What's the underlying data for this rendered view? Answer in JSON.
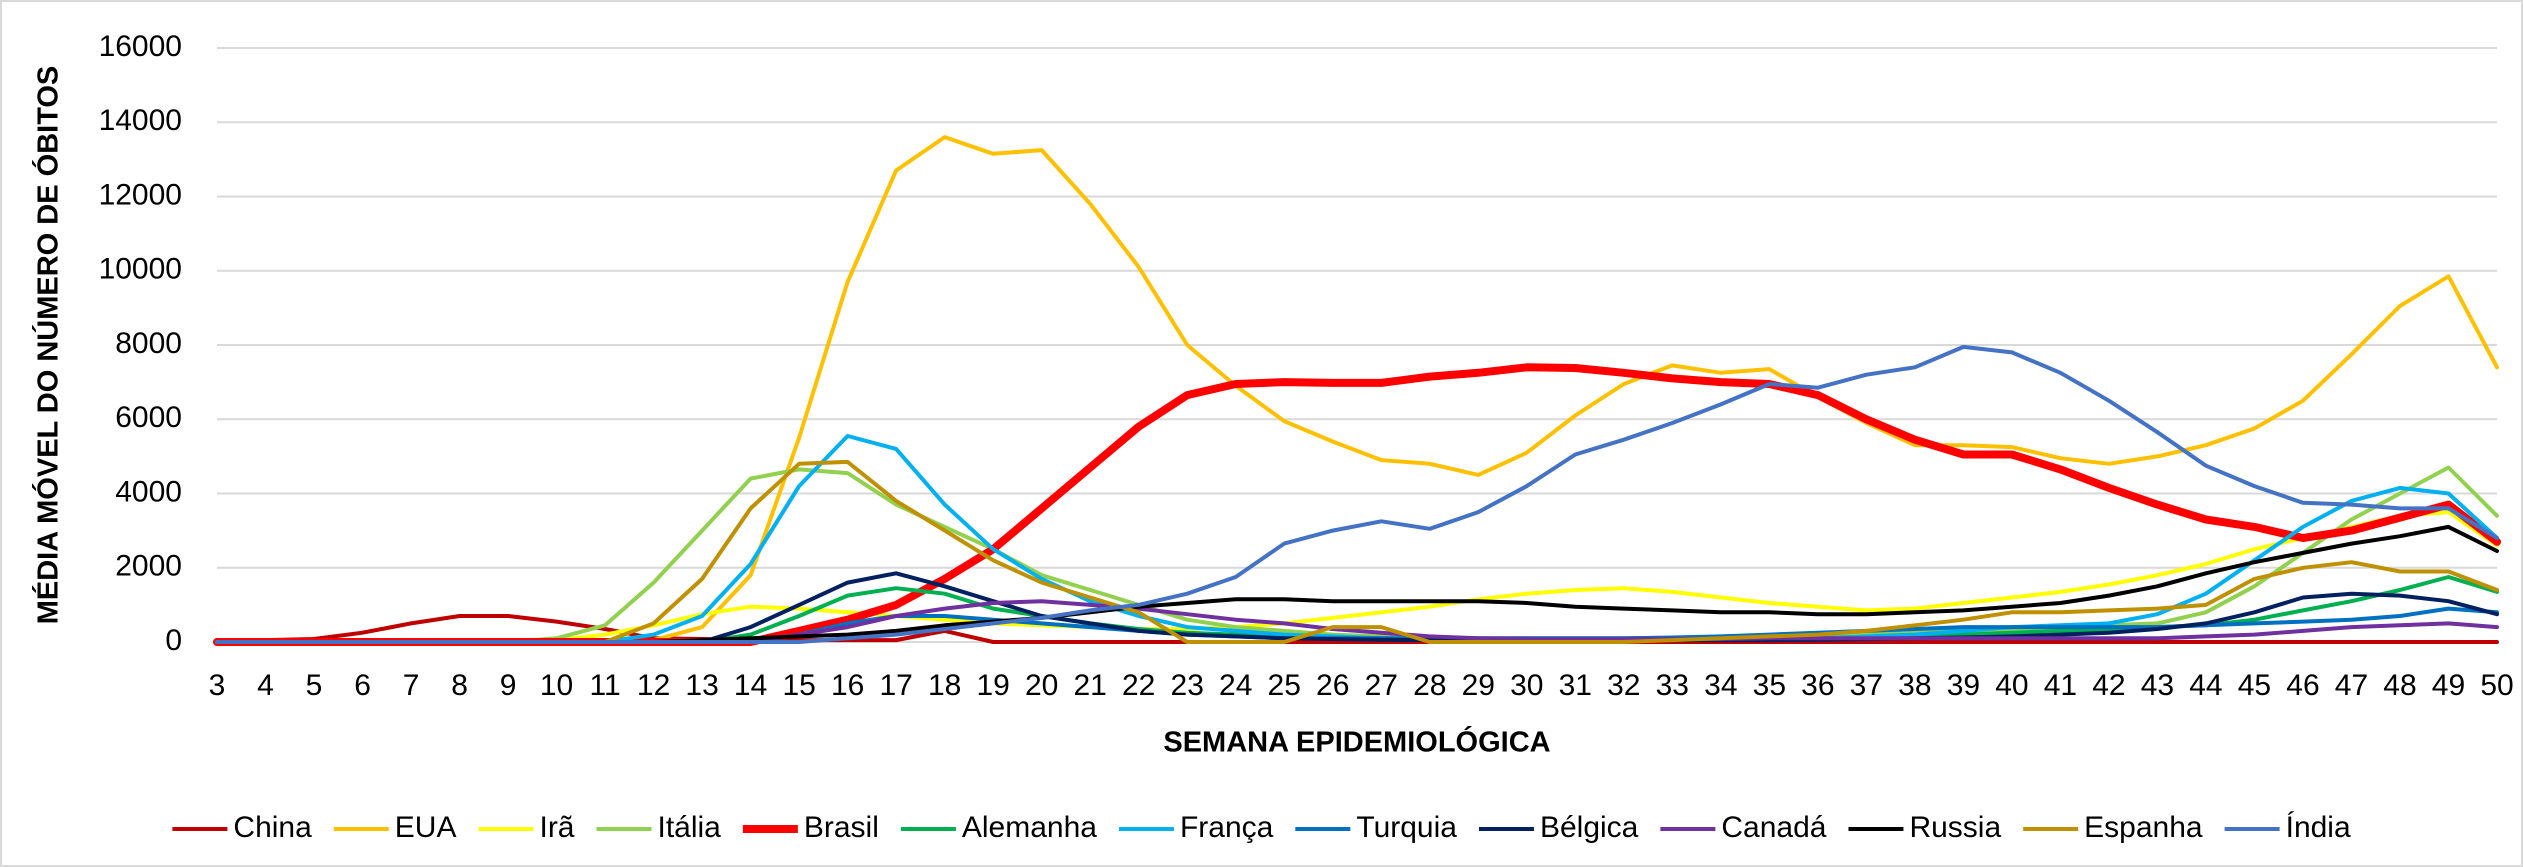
{
  "chart_data": {
    "type": "line",
    "xlabel": "SEMANA EPIDEMIOLÓGICA",
    "ylabel": "MÉDIA MÓVEL DO NÚMERO DE ÓBITOS",
    "x": [
      3,
      4,
      5,
      6,
      7,
      8,
      9,
      10,
      11,
      12,
      13,
      14,
      15,
      16,
      17,
      18,
      19,
      20,
      21,
      22,
      23,
      24,
      25,
      26,
      27,
      28,
      29,
      30,
      31,
      32,
      33,
      34,
      35,
      36,
      37,
      38,
      39,
      40,
      41,
      42,
      43,
      44,
      45,
      46,
      47,
      48,
      49,
      50
    ],
    "xlim": [
      3,
      50
    ],
    "xticks": [
      3,
      4,
      5,
      6,
      7,
      8,
      9,
      10,
      11,
      12,
      13,
      14,
      15,
      16,
      17,
      18,
      19,
      20,
      21,
      22,
      23,
      24,
      25,
      26,
      27,
      28,
      29,
      30,
      31,
      32,
      33,
      34,
      35,
      36,
      37,
      38,
      39,
      40,
      41,
      42,
      43,
      44,
      45,
      46,
      47,
      48,
      49,
      50
    ],
    "ylim": [
      0,
      16000
    ],
    "yticks": [
      0,
      2000,
      4000,
      6000,
      8000,
      10000,
      12000,
      14000,
      16000
    ],
    "grid": true,
    "legend": "bottom",
    "series": [
      {
        "name": "China",
        "color": "#c00000",
        "line_width": 4,
        "values": [
          50,
          50,
          80,
          250,
          500,
          700,
          700,
          550,
          350,
          100,
          80,
          50,
          50,
          50,
          50,
          300,
          0,
          0,
          0,
          0,
          0,
          0,
          0,
          0,
          0,
          0,
          0,
          0,
          0,
          0,
          0,
          0,
          0,
          0,
          0,
          0,
          0,
          0,
          0,
          0,
          0,
          0,
          0,
          0,
          0,
          0,
          0,
          0
        ]
      },
      {
        "name": "EUA",
        "color": "#ffc000",
        "line_width": 4,
        "values": [
          0,
          0,
          0,
          0,
          0,
          0,
          0,
          0,
          0,
          50,
          400,
          1800,
          5500,
          9700,
          12700,
          13600,
          13150,
          13250,
          11800,
          10100,
          8000,
          6900,
          5950,
          5400,
          4900,
          4800,
          4500,
          5100,
          6100,
          6950,
          7450,
          7250,
          7350,
          6600,
          5900,
          5300,
          5300,
          5250,
          4950,
          4800,
          5000,
          5300,
          5750,
          6500,
          7750,
          9050,
          9850,
          7400
        ]
      },
      {
        "name": "Irã",
        "color": "#ffff00",
        "line_width": 4,
        "values": [
          0,
          0,
          0,
          0,
          0,
          0,
          0,
          50,
          200,
          450,
          750,
          950,
          900,
          800,
          700,
          600,
          500,
          450,
          400,
          350,
          350,
          400,
          500,
          650,
          800,
          950,
          1150,
          1300,
          1400,
          1450,
          1350,
          1200,
          1050,
          950,
          850,
          900,
          1050,
          1200,
          1350,
          1550,
          1800,
          2100,
          2500,
          2800,
          3100,
          3400,
          3500,
          2600
        ]
      },
      {
        "name": "Itália",
        "color": "#92d050",
        "line_width": 4,
        "values": [
          0,
          0,
          0,
          0,
          0,
          0,
          0,
          100,
          450,
          1600,
          3000,
          4400,
          4650,
          4550,
          3700,
          3100,
          2500,
          1800,
          1400,
          1000,
          600,
          400,
          300,
          200,
          150,
          100,
          100,
          100,
          100,
          100,
          100,
          100,
          100,
          150,
          200,
          250,
          300,
          350,
          400,
          450,
          500,
          800,
          1500,
          2400,
          3300,
          4000,
          4700,
          3400
        ]
      },
      {
        "name": "Brasil",
        "color": "#ff0000",
        "line_width": 8,
        "values": [
          0,
          0,
          0,
          0,
          0,
          0,
          0,
          0,
          0,
          0,
          0,
          0,
          300,
          600,
          1000,
          1700,
          2500,
          3600,
          4700,
          5800,
          6650,
          6950,
          7000,
          6980,
          6980,
          7150,
          7250,
          7400,
          7380,
          7250,
          7100,
          7000,
          6950,
          6650,
          6000,
          5450,
          5050,
          5050,
          4650,
          4150,
          3700,
          3300,
          3100,
          2800,
          3000,
          3350,
          3700,
          2700
        ]
      },
      {
        "name": "Alemanha",
        "color": "#00b050",
        "line_width": 4,
        "values": [
          0,
          0,
          0,
          0,
          0,
          0,
          0,
          0,
          0,
          0,
          0,
          200,
          700,
          1250,
          1450,
          1300,
          900,
          700,
          500,
          350,
          250,
          200,
          150,
          100,
          80,
          60,
          50,
          50,
          50,
          50,
          50,
          60,
          80,
          100,
          120,
          150,
          200,
          250,
          300,
          350,
          400,
          450,
          600,
          850,
          1100,
          1400,
          1750,
          1350
        ]
      },
      {
        "name": "França",
        "color": "#00b0f0",
        "line_width": 4,
        "values": [
          0,
          0,
          0,
          0,
          0,
          0,
          0,
          0,
          0,
          200,
          700,
          2100,
          4200,
          5550,
          5200,
          3700,
          2500,
          1700,
          1100,
          700,
          400,
          300,
          200,
          150,
          100,
          80,
          60,
          50,
          50,
          50,
          50,
          60,
          80,
          100,
          150,
          200,
          300,
          400,
          450,
          500,
          750,
          1300,
          2200,
          3100,
          3800,
          4150,
          4000,
          2800
        ]
      },
      {
        "name": "Turquia",
        "color": "#0070c0",
        "line_width": 4,
        "values": [
          0,
          0,
          0,
          0,
          0,
          0,
          0,
          0,
          0,
          0,
          0,
          0,
          200,
          500,
          700,
          700,
          600,
          500,
          400,
          300,
          200,
          150,
          100,
          100,
          100,
          100,
          100,
          100,
          100,
          100,
          120,
          150,
          200,
          250,
          300,
          350,
          400,
          400,
          400,
          400,
          400,
          450,
          500,
          550,
          600,
          700,
          900,
          800
        ]
      },
      {
        "name": "Bélgica",
        "color": "#002060",
        "line_width": 4,
        "values": [
          0,
          0,
          0,
          0,
          0,
          0,
          0,
          0,
          0,
          0,
          0,
          400,
          1000,
          1600,
          1850,
          1500,
          1100,
          700,
          500,
          300,
          200,
          150,
          100,
          80,
          60,
          50,
          50,
          50,
          50,
          50,
          50,
          50,
          50,
          60,
          80,
          100,
          120,
          150,
          200,
          250,
          350,
          500,
          800,
          1200,
          1300,
          1250,
          1100,
          750
        ]
      },
      {
        "name": "Canadá",
        "color": "#7030a0",
        "line_width": 4,
        "values": [
          0,
          0,
          0,
          0,
          0,
          0,
          0,
          0,
          0,
          0,
          0,
          0,
          200,
          400,
          700,
          900,
          1050,
          1100,
          1000,
          900,
          750,
          600,
          500,
          350,
          250,
          150,
          100,
          80,
          80,
          80,
          80,
          80,
          100,
          100,
          100,
          100,
          100,
          100,
          100,
          100,
          100,
          150,
          200,
          300,
          400,
          450,
          500,
          400
        ]
      },
      {
        "name": "Russia",
        "color": "#000000",
        "line_width": 4,
        "values": [
          0,
          0,
          0,
          0,
          0,
          0,
          0,
          0,
          0,
          0,
          50,
          100,
          150,
          200,
          300,
          450,
          550,
          650,
          800,
          950,
          1050,
          1150,
          1150,
          1100,
          1100,
          1100,
          1100,
          1050,
          950,
          900,
          850,
          800,
          800,
          750,
          750,
          800,
          850,
          950,
          1050,
          1250,
          1500,
          1850,
          2150,
          2400,
          2650,
          2850,
          3100,
          2450
        ]
      },
      {
        "name": "Espanha",
        "color": "#bf9000",
        "line_width": 4,
        "values": [
          0,
          0,
          0,
          0,
          0,
          0,
          0,
          0,
          0,
          500,
          1700,
          3600,
          4800,
          4850,
          3800,
          3000,
          2200,
          1600,
          1200,
          800,
          0,
          0,
          0,
          400,
          400,
          0,
          0,
          0,
          0,
          0,
          50,
          100,
          150,
          200,
          300,
          450,
          600,
          800,
          800,
          850,
          900,
          1000,
          1700,
          2000,
          2150,
          1900,
          1900,
          1400
        ]
      },
      {
        "name": "Índia",
        "color": "#4472c4",
        "line_width": 4,
        "values": [
          0,
          0,
          0,
          0,
          0,
          0,
          0,
          0,
          0,
          0,
          0,
          0,
          0,
          100,
          200,
          350,
          500,
          650,
          850,
          1000,
          1300,
          1750,
          2650,
          3000,
          3250,
          3050,
          3500,
          4200,
          5050,
          5450,
          5900,
          6400,
          6950,
          6850,
          7200,
          7400,
          7950,
          7800,
          7250,
          6500,
          5650,
          4750,
          4200,
          3750,
          3700,
          3600,
          3600,
          2800
        ]
      }
    ]
  }
}
